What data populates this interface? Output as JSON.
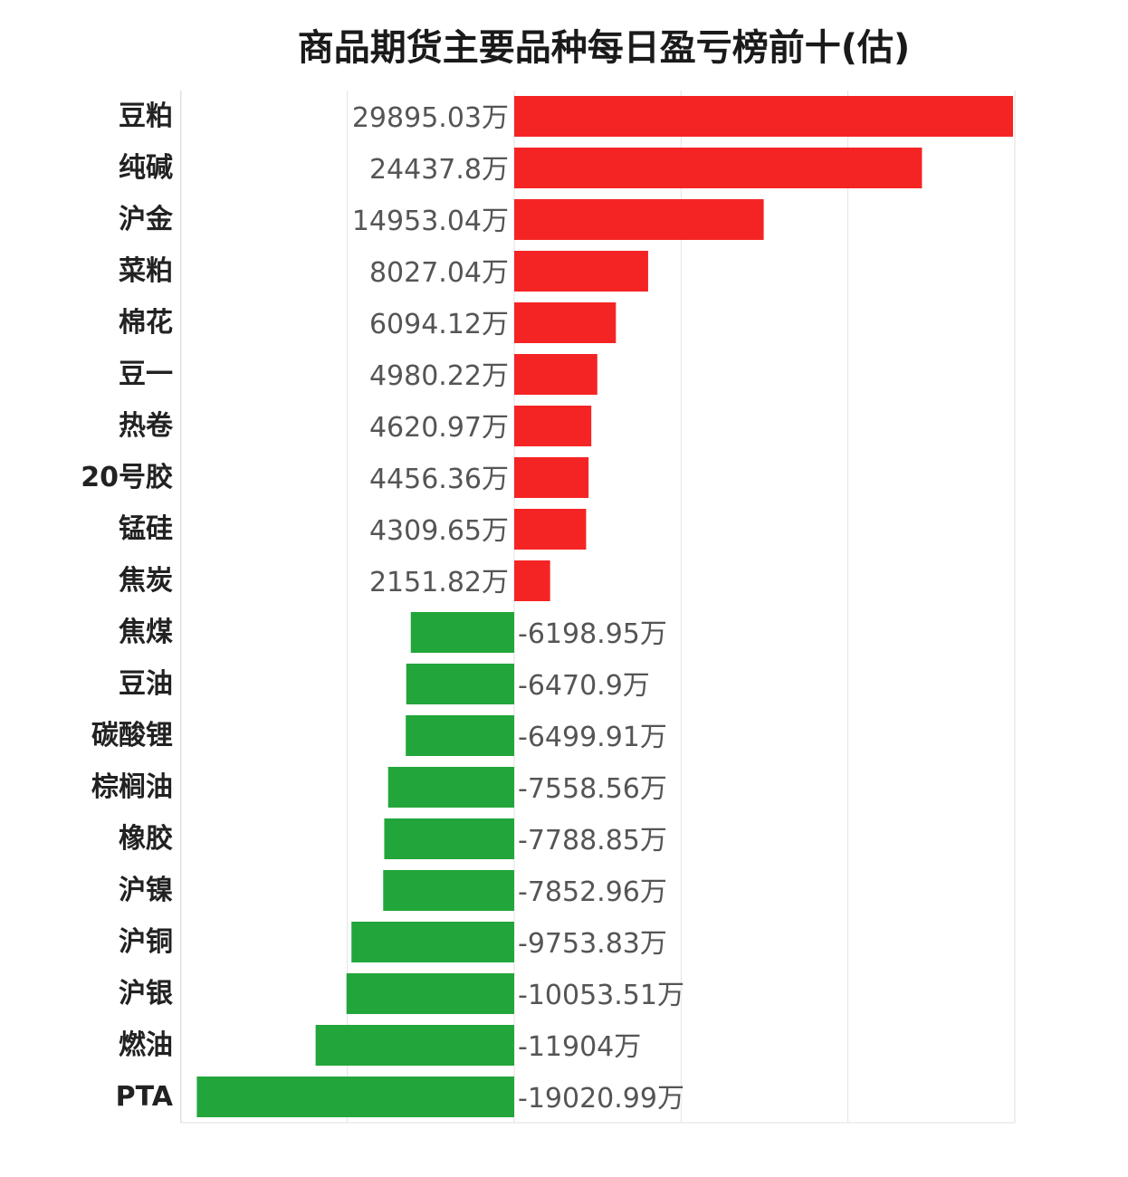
{
  "chart_data": {
    "type": "bar",
    "orientation": "horizontal",
    "title": "商品期货主要品种每日盈亏榜前十(估)",
    "unit": "万",
    "xlim": [
      -20000,
      30000
    ],
    "grid": true,
    "legend": "none",
    "categories": [
      "豆粕",
      "纯碱",
      "沪金",
      "菜粕",
      "棉花",
      "豆一",
      "热卷",
      "20号胶",
      "锰硅",
      "焦炭",
      "焦煤",
      "豆油",
      "碳酸锂",
      "棕榈油",
      "橡胶",
      "沪镍",
      "沪铜",
      "沪银",
      "燃油",
      "PTA"
    ],
    "values": [
      29895.03,
      24437.8,
      14953.04,
      8027.04,
      6094.12,
      4980.22,
      4620.97,
      4456.36,
      4309.65,
      2151.82,
      -6198.95,
      -6470.9,
      -6499.91,
      -7558.56,
      -7788.85,
      -7852.96,
      -9753.83,
      -10053.51,
      -11904,
      -19020.99
    ],
    "value_labels": [
      "29895.03万",
      "24437.8万",
      "14953.04万",
      "8027.04万",
      "6094.12万",
      "4980.22万",
      "4620.97万",
      "4456.36万",
      "4309.65万",
      "2151.82万",
      "-6198.95万",
      "-6470.9万",
      "-6499.91万",
      "-7558.56万",
      "-7788.85万",
      "-7852.96万",
      "-9753.83万",
      "-10053.51万",
      "-11904万",
      "-19020.99万"
    ],
    "colors": {
      "positive": "#f52424",
      "negative": "#22a63b",
      "grid": "#e2e2e2"
    }
  }
}
